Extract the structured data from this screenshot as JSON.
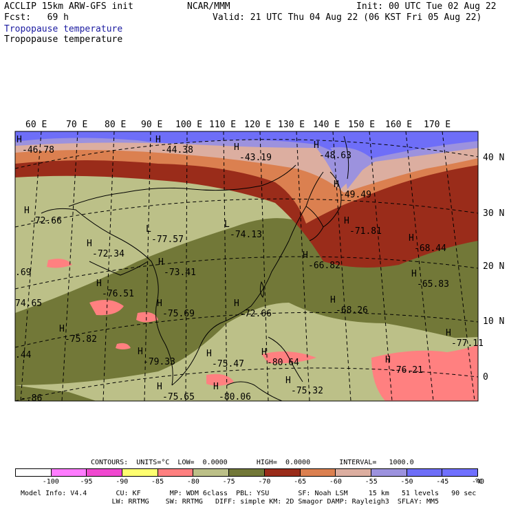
{
  "header": {
    "model_line": "ACCLIP 15km ARW-GFS init",
    "fcst_line": "Fcst:   69 h",
    "org": "NCAR/MMM",
    "init": "Init: 00 UTC Tue 02 Aug 22",
    "valid": "Valid: 21 UTC Thu 04 Aug 22 (06 KST Fri 05 Aug 22)",
    "field_title_1": "Tropopause temperature",
    "field_title_2": "Tropopause temperature"
  },
  "map": {
    "longitude_labels": [
      "60 E",
      "70 E",
      "80 E",
      "90 E",
      "100 E",
      "110 E",
      "120 E",
      "130 E",
      "140 E",
      "150 E",
      "160 E",
      "170 E"
    ],
    "latitude_labels": [
      "40 N",
      "30 N",
      "20 N",
      "10 N",
      "0"
    ],
    "extrema": [
      {
        "mark": "H",
        "value": "-46.78"
      },
      {
        "mark": "H",
        "value": "-44.38"
      },
      {
        "mark": "H",
        "value": "-43.19"
      },
      {
        "mark": "H",
        "value": "-48.63"
      },
      {
        "mark": "H",
        "value": "-49.49"
      },
      {
        "mark": "H",
        "value": "-72.66"
      },
      {
        "mark": "L",
        "value": "-77.57"
      },
      {
        "mark": "L",
        "value": "-74.13"
      },
      {
        "mark": "H",
        "value": "-71.81"
      },
      {
        "mark": "H",
        "value": "-68.44"
      },
      {
        "mark": "H",
        "value": "-72.34"
      },
      {
        "mark": "H",
        "value": "-73.41"
      },
      {
        "mark": "H",
        "value": "-66.82"
      },
      {
        "mark": "H",
        "value": "-65.83"
      },
      {
        "mark": "H",
        "value": "-76.51"
      },
      {
        "mark": "H",
        "value": "-68.26"
      },
      {
        "mark": "H",
        "value": "-75.69"
      },
      {
        "mark": "H",
        "value": "-72.66"
      },
      {
        "mark": "H",
        "value": "-75.82"
      },
      {
        "mark": "H",
        "value": "-77.11"
      },
      {
        "mark": "H",
        "value": "-79.33"
      },
      {
        "mark": "H",
        "value": "-75.47"
      },
      {
        "mark": "H",
        "value": "-80.64"
      },
      {
        "mark": "H",
        "value": "-76.21"
      },
      {
        "mark": "H",
        "value": "-75.32"
      },
      {
        "mark": "H",
        "value": "-75.65"
      },
      {
        "mark": "H",
        "value": "-80.06"
      },
      {
        "mark": "",
        "value": ".69"
      },
      {
        "mark": "",
        "value": "74.65"
      },
      {
        "mark": "",
        "value": ".44"
      },
      {
        "mark": "",
        "value": "-.86"
      }
    ]
  },
  "contours_line": "CONTOURS:  UNITS=°C  LOW=  0.0000       HIGH=  0.0000       INTERVAL=   1000.0",
  "colorbar": {
    "colors": [
      "#ffffff",
      "#ff7cff",
      "#f048d0",
      "#ffff70",
      "#ff8080",
      "#bcc088",
      "#727838",
      "#9a2c1a",
      "#db8050",
      "#dcaea0",
      "#9c92de",
      "#6e6ef8",
      "#7070ff"
    ],
    "ticks": [
      "-100",
      "-95",
      "-90",
      "-85",
      "-80",
      "-75",
      "-70",
      "-65",
      "-60",
      "-55",
      "-50",
      "-45",
      "-40"
    ],
    "unit": "°C"
  },
  "footer": {
    "line1": "Model Info: V4.4       CU: KF       MP: WDM 6class  PBL: YSU       SF: Noah LSM     15 km   51 levels   90 sec",
    "line2": "                      LW: RRTMG    SW: RRTMG   DIFF: simple KM: 2D Smagor DAMP: Rayleigh3  SFLAY: MM5"
  }
}
